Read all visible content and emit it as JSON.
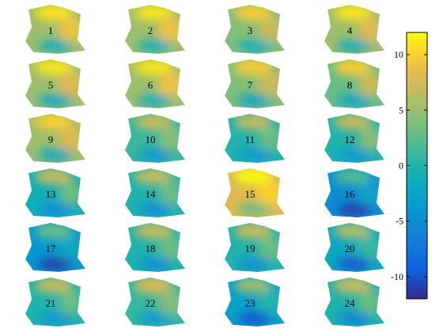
{
  "chart_data": {
    "type": "heatmap",
    "title": "",
    "panel_labels": [
      "1",
      "2",
      "3",
      "4",
      "5",
      "6",
      "7",
      "8",
      "9",
      "10",
      "11",
      "12",
      "13",
      "14",
      "15",
      "16",
      "17",
      "18",
      "19",
      "20",
      "21",
      "22",
      "23",
      "24"
    ],
    "grid": {
      "rows": 6,
      "cols": 4
    },
    "colorbar": {
      "colormap": "parula",
      "range": [
        -12,
        12
      ],
      "ticks": [
        10,
        5,
        0,
        -5,
        -10
      ],
      "tick_labels": [
        "10",
        "5",
        "0",
        "-5",
        "-10"
      ]
    },
    "panels": [
      {
        "label": "1",
        "top": 11,
        "right": 9,
        "center": 5,
        "bottom": -1
      },
      {
        "label": "2",
        "top": 11,
        "right": 9,
        "center": 5,
        "bottom": -1
      },
      {
        "label": "3",
        "top": 10,
        "right": 7,
        "center": 4,
        "bottom": -1
      },
      {
        "label": "4",
        "top": 11,
        "right": 8,
        "center": 5,
        "bottom": -1
      },
      {
        "label": "5",
        "top": 11,
        "right": 8,
        "center": 5,
        "bottom": -2
      },
      {
        "label": "6",
        "top": 11,
        "right": 9,
        "center": 5,
        "bottom": -1
      },
      {
        "label": "7",
        "top": 10,
        "right": 7,
        "center": 4,
        "bottom": -2
      },
      {
        "label": "8",
        "top": 10,
        "right": 7,
        "center": 3,
        "bottom": -2
      },
      {
        "label": "9",
        "top": 10,
        "right": 8,
        "center": 5,
        "bottom": -2
      },
      {
        "label": "10",
        "top": 7,
        "right": 4,
        "center": 1,
        "bottom": -4
      },
      {
        "label": "11",
        "top": 7,
        "right": 3,
        "center": 0,
        "bottom": -4
      },
      {
        "label": "12",
        "top": 7,
        "right": 4,
        "center": 0,
        "bottom": -4
      },
      {
        "label": "13",
        "top": 7,
        "right": 3,
        "center": -1,
        "bottom": -5
      },
      {
        "label": "14",
        "top": 7,
        "right": 3,
        "center": 0,
        "bottom": -5
      },
      {
        "label": "15",
        "top": 12,
        "right": 10,
        "center": 8,
        "bottom": 3
      },
      {
        "label": "16",
        "top": 2,
        "right": -3,
        "center": -5,
        "bottom": -11
      },
      {
        "label": "17",
        "top": 3,
        "right": -2,
        "center": -4,
        "bottom": -11
      },
      {
        "label": "18",
        "top": 7,
        "right": 3,
        "center": 0,
        "bottom": -5
      },
      {
        "label": "19",
        "top": 7,
        "right": 3,
        "center": 0,
        "bottom": -5
      },
      {
        "label": "20",
        "top": 6,
        "right": 1,
        "center": -2,
        "bottom": -10
      },
      {
        "label": "21",
        "top": 7,
        "right": 3,
        "center": 0,
        "bottom": -4
      },
      {
        "label": "22",
        "top": 8,
        "right": 4,
        "center": 1,
        "bottom": -4
      },
      {
        "label": "23",
        "top": 5,
        "right": 0,
        "center": -3,
        "bottom": -10
      },
      {
        "label": "24",
        "top": 7,
        "right": 3,
        "center": 0,
        "bottom": -6
      }
    ]
  }
}
